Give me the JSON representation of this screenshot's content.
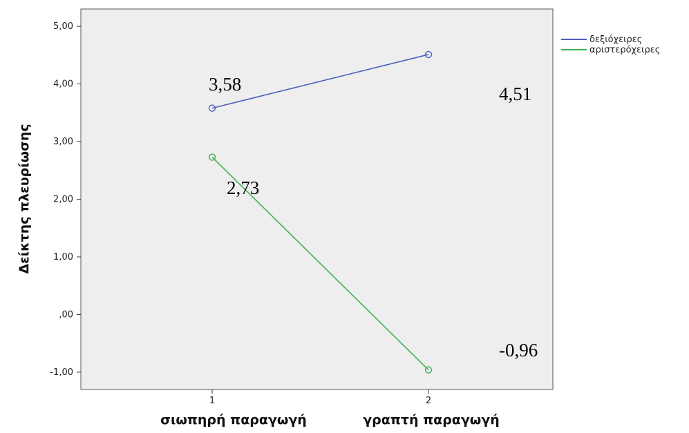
{
  "chart_data": {
    "type": "line",
    "xlabel_parts": [
      "σιωπηρή παραγωγή",
      "γραπτή παραγωγή"
    ],
    "ylabel": "Δείκτης πλευρίωσης",
    "x": [
      1,
      2
    ],
    "x_tick_labels": [
      "1",
      "2"
    ],
    "ylim": [
      -1.3,
      5.3
    ],
    "y_ticks": [
      -1,
      0,
      1,
      2,
      3,
      4,
      5
    ],
    "y_tick_labels": [
      "-1,00",
      ",00",
      "1,00",
      "2,00",
      "3,00",
      "4,00",
      "5,00"
    ],
    "grid": false,
    "legend_position": "right",
    "series": [
      {
        "name": "δεξιόχειρες",
        "color": "#4a5fc1",
        "values": [
          3.58,
          4.51
        ],
        "data_labels": [
          "3,58",
          "4,51"
        ]
      },
      {
        "name": "αριστερόχειρες",
        "color": "#3fb24f",
        "values": [
          2.73,
          -0.96
        ],
        "data_labels": [
          "2,73",
          "-0,96"
        ]
      }
    ],
    "plot_background": "#eeeeee"
  }
}
